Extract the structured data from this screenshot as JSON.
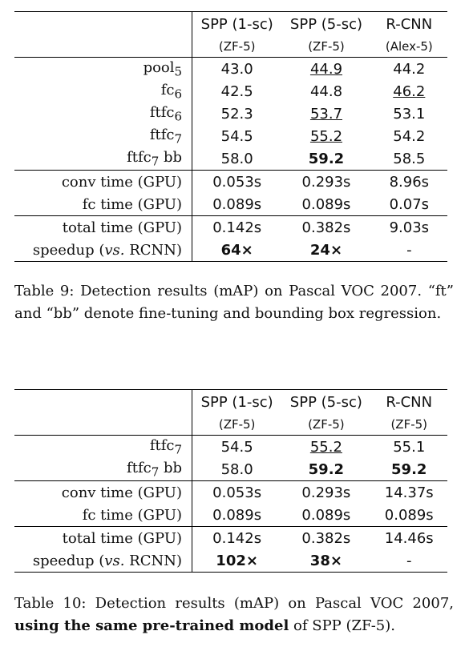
{
  "table9": {
    "headers": [
      {
        "name": "SPP (1-sc)",
        "sub": "(ZF-5)"
      },
      {
        "name": "SPP (5-sc)",
        "sub": "(ZF-5)"
      },
      {
        "name": "R-CNN",
        "sub": "(Alex-5)"
      }
    ],
    "rows": [
      {
        "label_base": "pool",
        "label_sub": "5",
        "label_suffix": "",
        "values": [
          "43.0",
          "44.9",
          "44.2"
        ]
      },
      {
        "label_base": "fc",
        "label_sub": "6",
        "label_suffix": "",
        "values": [
          "42.5",
          "44.8",
          "46.2"
        ]
      },
      {
        "label_base": "ftfc",
        "label_sub": "6",
        "label_suffix": "",
        "values": [
          "52.3",
          "53.7",
          "53.1"
        ]
      },
      {
        "label_base": "ftfc",
        "label_sub": "7",
        "label_suffix": "",
        "values": [
          "54.5",
          "55.2",
          "54.2"
        ]
      },
      {
        "label_base": "ftfc",
        "label_sub": "7",
        "label_suffix": " bb",
        "values": [
          "58.0",
          "59.2",
          "58.5"
        ]
      },
      {
        "label": "conv time (GPU)",
        "values": [
          "0.053s",
          "0.293s",
          "8.96s"
        ]
      },
      {
        "label": "fc time (GPU)",
        "values": [
          "0.089s",
          "0.089s",
          "0.07s"
        ]
      },
      {
        "label": "total time (GPU)",
        "values": [
          "0.142s",
          "0.382s",
          "9.03s"
        ]
      },
      {
        "label_pre": "speedup (",
        "label_em": "vs.",
        "label_post": " RCNN)",
        "values": [
          "64×",
          "24×",
          "-"
        ]
      }
    ],
    "caption": "Table 9: Detection results (mAP) on Pascal VOC 2007. “ft” and “bb” denote fine-tuning and bounding box regression."
  },
  "table10": {
    "headers": [
      {
        "name": "SPP (1-sc)",
        "sub": "(ZF-5)"
      },
      {
        "name": "SPP (5-sc)",
        "sub": "(ZF-5)"
      },
      {
        "name": "R-CNN",
        "sub": "(ZF-5)"
      }
    ],
    "rows": [
      {
        "label_base": "ftfc",
        "label_sub": "7",
        "label_suffix": "",
        "values": [
          "54.5",
          "55.2",
          "55.1"
        ]
      },
      {
        "label_base": "ftfc",
        "label_sub": "7",
        "label_suffix": " bb",
        "values": [
          "58.0",
          "59.2",
          "59.2"
        ]
      },
      {
        "label": "conv time (GPU)",
        "values": [
          "0.053s",
          "0.293s",
          "14.37s"
        ]
      },
      {
        "label": "fc time (GPU)",
        "values": [
          "0.089s",
          "0.089s",
          "0.089s"
        ]
      },
      {
        "label": "total time (GPU)",
        "values": [
          "0.142s",
          "0.382s",
          "14.46s"
        ]
      },
      {
        "label_pre": "speedup (",
        "label_em": "vs.",
        "label_post": " RCNN)",
        "values": [
          "102×",
          "38×",
          "-"
        ]
      }
    ],
    "caption_pre": "Table 10: Detection results (mAP) on Pascal VOC 2007, ",
    "caption_bold": "using the same pre-trained model",
    "caption_post": " of SPP (ZF-5)."
  }
}
